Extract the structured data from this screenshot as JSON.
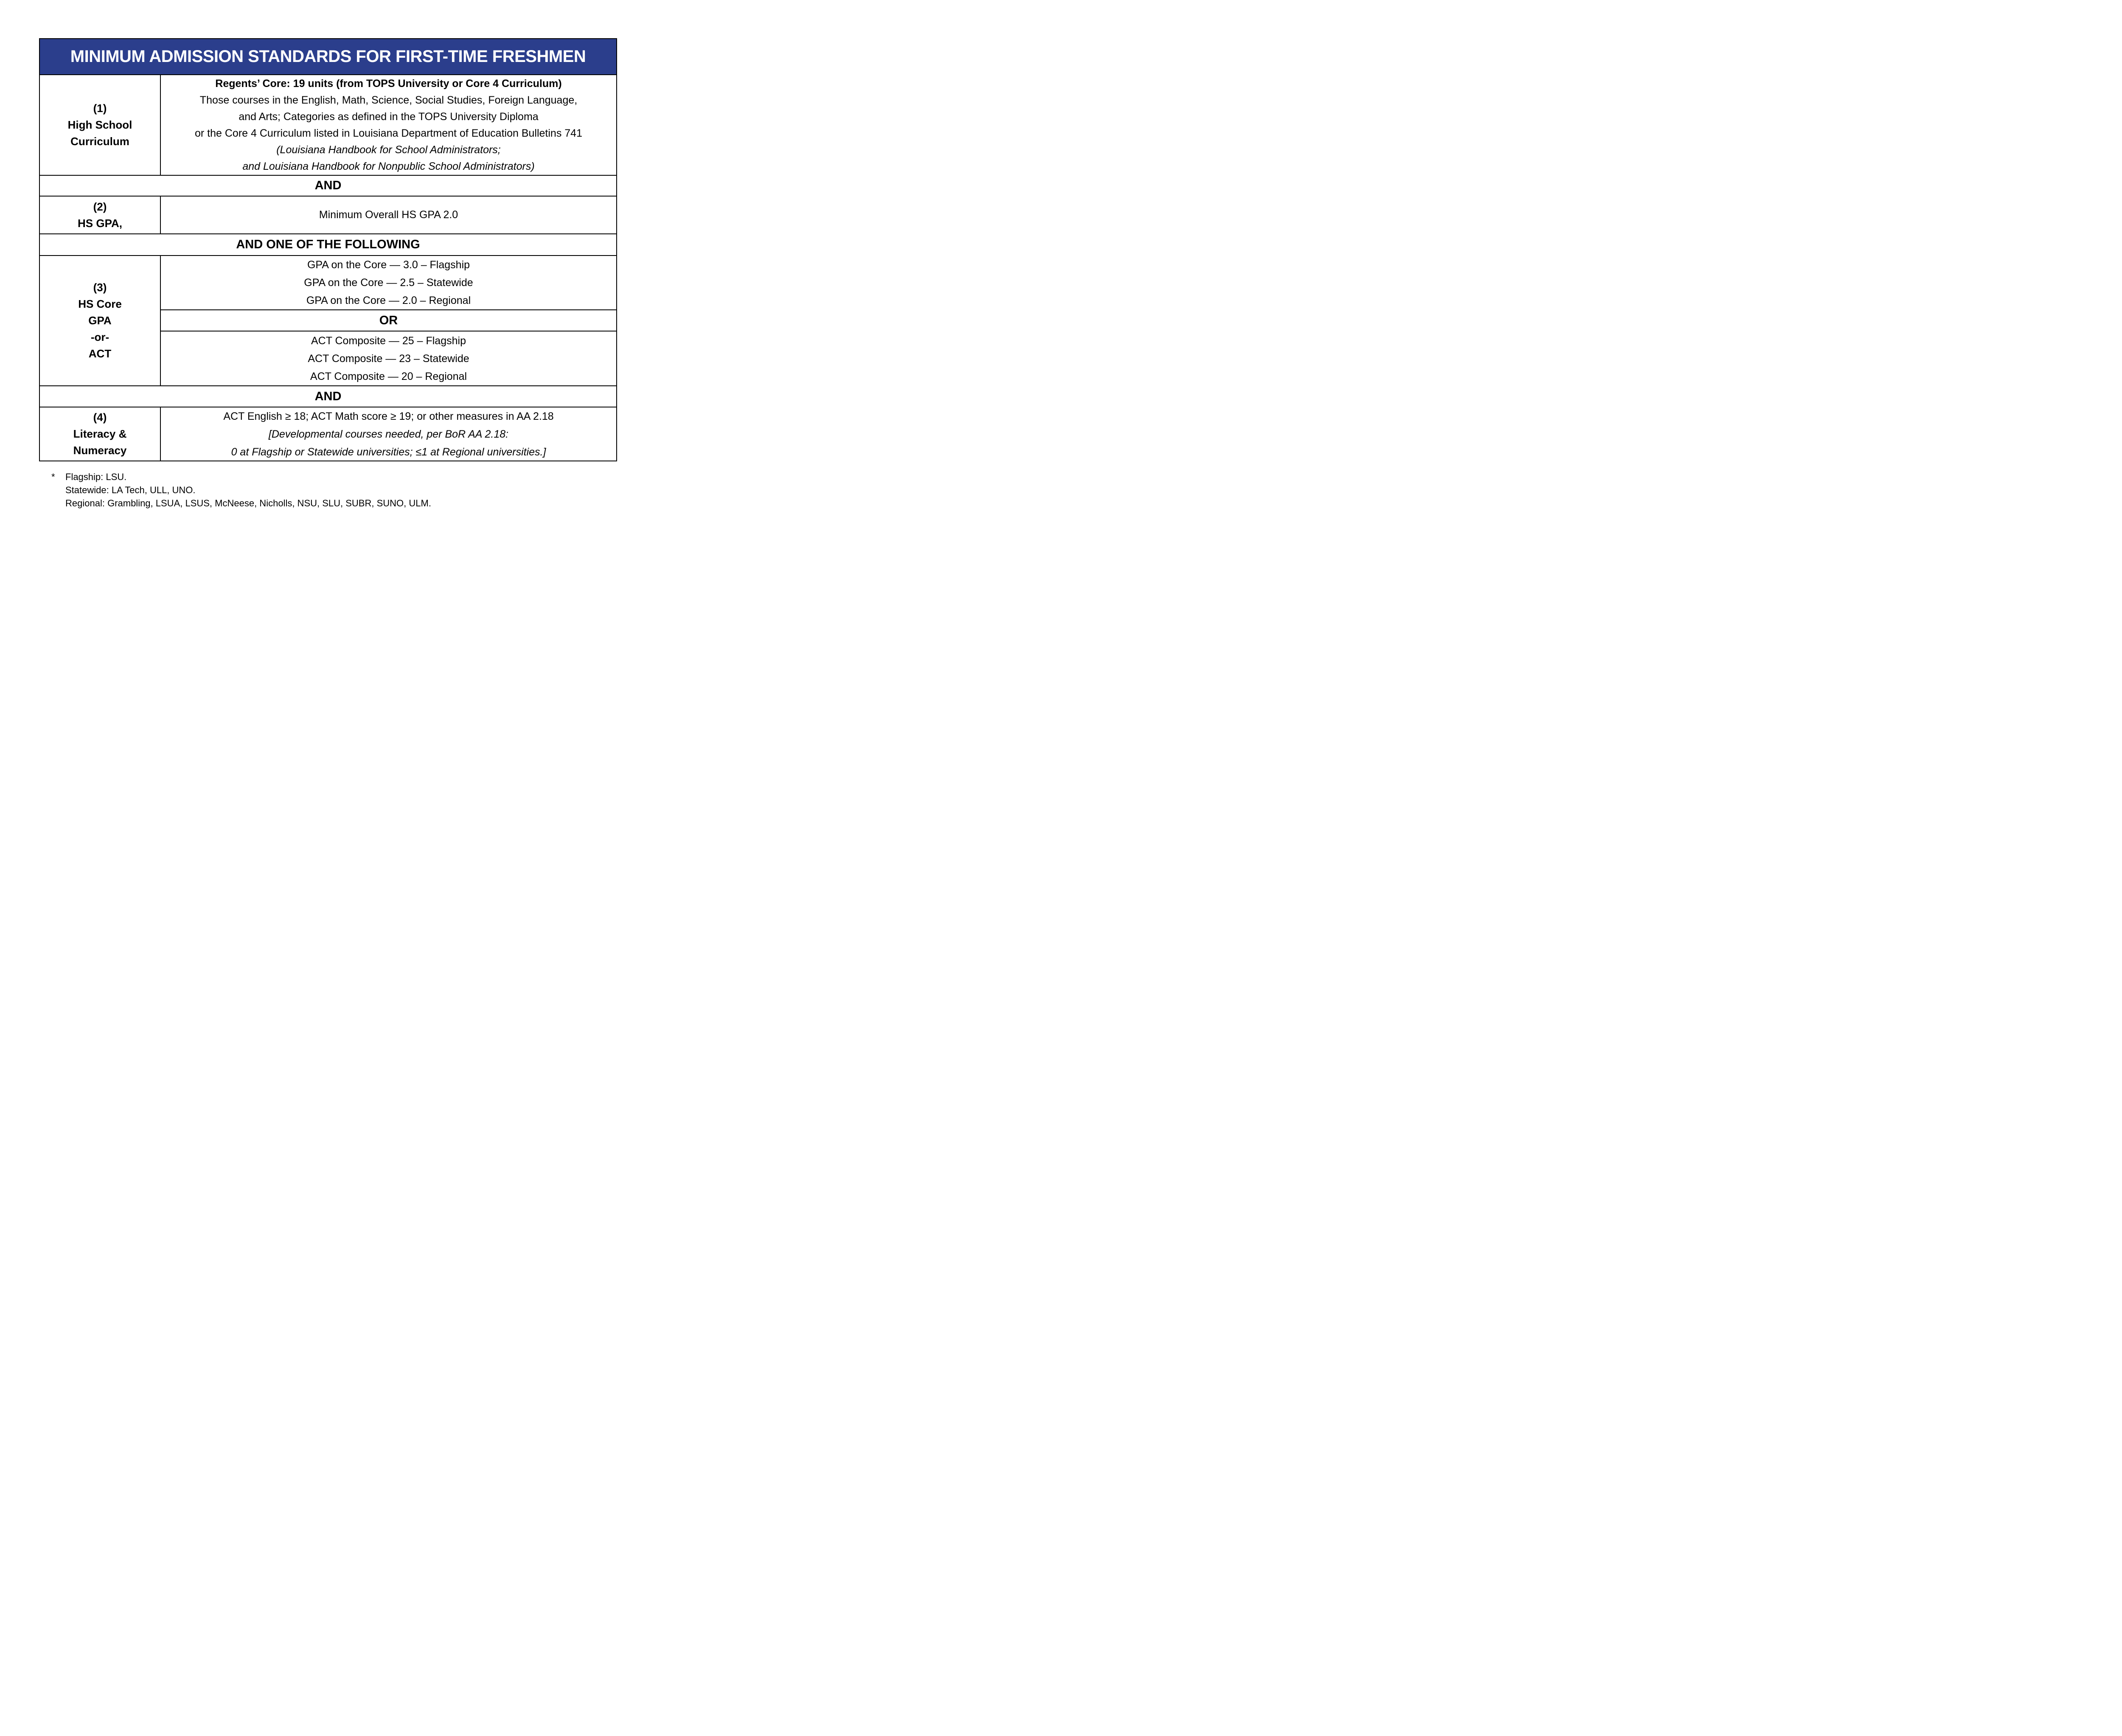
{
  "colors": {
    "header_bg": "#2b3e8c",
    "header_text": "#ffffff",
    "border": "#000000",
    "body_text": "#000000"
  },
  "header": {
    "title": "MINIMUM ADMISSION STANDARDS FOR FIRST-TIME FRESHMEN"
  },
  "rows": {
    "r1": {
      "label": {
        "num": "(1)",
        "line1": "High School",
        "line2": "Curriculum"
      },
      "content": {
        "bold_line": "Regents’ Core: 19 units (from TOPS University or Core 4 Curriculum)",
        "line1": "Those courses in the English, Math, Science, Social Studies, Foreign Language,",
        "line2": "and Arts; Categories as defined in the TOPS University Diploma",
        "line3": "or the Core 4 Curriculum listed in Louisiana Department of Education Bulletins 741",
        "italic1": "(Louisiana Handbook for School Administrators;",
        "italic2": "and Louisiana Handbook for Nonpublic School Administrators)"
      }
    },
    "and1": "AND",
    "r2": {
      "label": {
        "num": "(2)",
        "line1": "HS GPA,"
      },
      "content": "Minimum Overall HS GPA 2.0"
    },
    "and_one_of": "AND ONE OF THE FOLLOWING",
    "r3": {
      "label": {
        "num": "(3)",
        "line1": "HS Core",
        "line2": "GPA",
        "line3": "-or-",
        "line4": "ACT"
      },
      "gpa": {
        "line1": "GPA on the Core — 3.0 – Flagship",
        "line2": "GPA on the Core — 2.5 – Statewide",
        "line3": "GPA on the Core — 2.0 – Regional"
      },
      "or_label": "OR",
      "act": {
        "line1": "ACT Composite — 25 – Flagship",
        "line2": "ACT Composite — 23 – Statewide",
        "line3": "ACT Composite — 20 – Regional"
      }
    },
    "and2": "AND",
    "r4": {
      "label": {
        "num": "(4)",
        "line1": "Literacy &",
        "line2": "Numeracy"
      },
      "content": {
        "line1": "ACT English ≥ 18; ACT Math score ≥ 19; or other measures in AA 2.18",
        "italic1": "[Developmental courses needed, per BoR AA 2.18:",
        "italic2": "0 at Flagship or Statewide universities; ≤1 at Regional universities.]"
      }
    }
  },
  "footnote": {
    "marker": "*",
    "line1": "Flagship: LSU.",
    "line2": "Statewide: LA Tech, ULL, UNO.",
    "line3": "Regional: Grambling, LSUA, LSUS, McNeese, Nicholls, NSU, SLU, SUBR, SUNO, ULM."
  }
}
